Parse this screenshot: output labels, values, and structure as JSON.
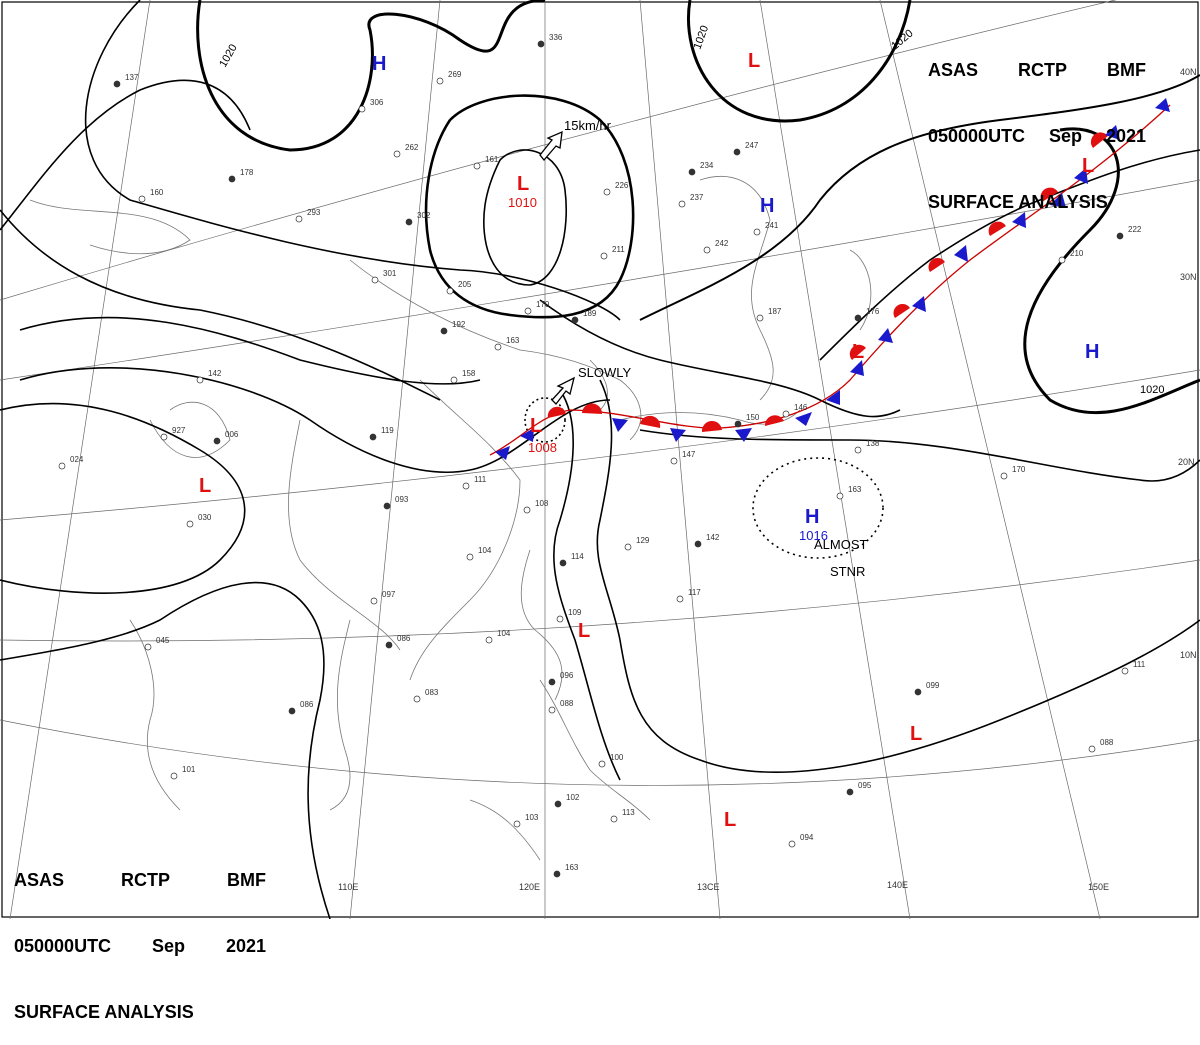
{
  "header": {
    "agency_line": [
      "ASAS",
      "RCTP",
      "BMF"
    ],
    "time_line": [
      "050000UTC",
      "Sep",
      "2021"
    ],
    "title": "SURFACE ANALYSIS"
  },
  "isobar_labels": [
    "1020",
    "1020",
    "1020",
    "1020"
  ],
  "pressure_centers": [
    {
      "type": "H",
      "color": "#1a1acc",
      "value": ""
    },
    {
      "type": "H",
      "color": "#1a1acc",
      "value": ""
    },
    {
      "type": "H",
      "color": "#1a1acc",
      "value": ""
    },
    {
      "type": "H",
      "color": "#1a1acc",
      "value": "1016"
    },
    {
      "type": "L",
      "color": "#e01010",
      "value": ""
    },
    {
      "type": "L",
      "color": "#e01010",
      "value": "1010"
    },
    {
      "type": "L",
      "color": "#e01010",
      "value": "1008"
    },
    {
      "type": "L",
      "color": "#e01010",
      "value": ""
    },
    {
      "type": "L",
      "color": "#e01010",
      "value": ""
    },
    {
      "type": "L",
      "color": "#e01010",
      "value": ""
    },
    {
      "type": "L",
      "color": "#e01010",
      "value": ""
    },
    {
      "type": "L",
      "color": "#e01010",
      "value": ""
    },
    {
      "type": "L",
      "color": "#e01010",
      "value": ""
    }
  ],
  "motion_labels": {
    "low_north": "15km/hr",
    "low_south": "SLOWLY",
    "high_east_1": "ALMOST",
    "high_east_2": "STNR"
  },
  "longitude_labels": [
    "110E",
    "120E",
    "13CE",
    "140E",
    "150E"
  ],
  "latitude_labels": [
    "40N",
    "30N",
    "20N",
    "10N"
  ],
  "station_numbers": [
    "137",
    "306",
    "269",
    "336",
    "262",
    "161",
    "178",
    "160",
    "293",
    "302",
    "301",
    "205",
    "192",
    "163",
    "170",
    "189",
    "226",
    "211",
    "234",
    "237",
    "242",
    "247",
    "241",
    "187",
    "176",
    "142",
    "927",
    "006",
    "024",
    "030",
    "119",
    "158",
    "111",
    "093",
    "108",
    "104",
    "114",
    "109",
    "097",
    "086",
    "104",
    "083",
    "086",
    "045",
    "101",
    "096",
    "088",
    "100",
    "102",
    "113",
    "103",
    "163",
    "129",
    "117",
    "142",
    "147",
    "146",
    "150",
    "163",
    "170",
    "099",
    "111",
    "088",
    "095",
    "094",
    "210",
    "222",
    "138"
  ]
}
